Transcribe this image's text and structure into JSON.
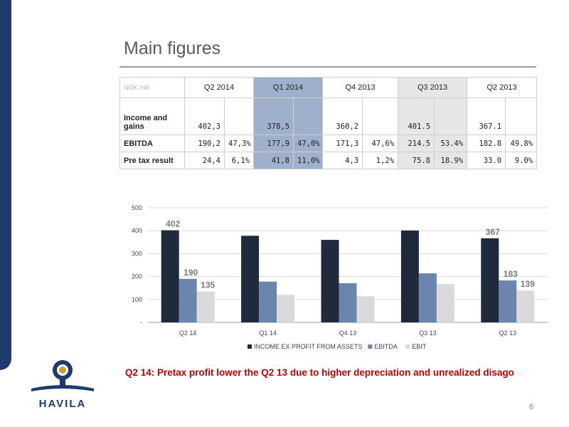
{
  "title": "Main figures",
  "table": {
    "corner": "NOK mill",
    "periods": [
      "Q2 2014",
      "Q1 2014",
      "Q4 2013",
      "Q3 2013",
      "Q2 2013"
    ],
    "rows": [
      {
        "label": "Income and gains",
        "cells": [
          "402,3",
          "",
          "378,5",
          "",
          "360,2",
          "",
          "401.5",
          "",
          "367.1",
          ""
        ]
      },
      {
        "label": "EBITDA",
        "cells": [
          "190,2",
          "47,3%",
          "177,9",
          "47,0%",
          "171,3",
          "47,6%",
          "214.5",
          "53.4%",
          "182.8",
          "49.8%"
        ]
      },
      {
        "label": "Pre tax result",
        "cells": [
          "24,4",
          "6,1%",
          "41,8",
          "11,0%",
          "4,3",
          "1,2%",
          "75.8",
          "18.9%",
          "33.0",
          "9.0%"
        ]
      }
    ]
  },
  "chart_data": {
    "type": "bar",
    "categories": [
      "Q2 14",
      "Q1 14",
      "Q4 13",
      "Q3 13",
      "Q2 13"
    ],
    "series": [
      {
        "name": "INCOME EX PROFIT FROM ASSETS",
        "color": "#1f2a3c",
        "values": [
          402,
          378,
          360,
          401,
          367
        ]
      },
      {
        "name": "EBITDA",
        "color": "#6a86ad",
        "values": [
          190,
          178,
          171,
          214,
          183
        ]
      },
      {
        "name": "EBIT",
        "color": "#dadada",
        "values": [
          135,
          120,
          114,
          167,
          139
        ]
      }
    ],
    "ylim": [
      0,
      500
    ],
    "yticks": [
      0,
      100,
      200,
      300,
      400,
      500
    ],
    "ytick_labels": [
      "-",
      "100",
      "200",
      "300",
      "400",
      "500"
    ],
    "data_labels": [
      {
        "category": "Q2 14",
        "series": "INCOME EX PROFIT FROM ASSETS",
        "text": "402"
      },
      {
        "category": "Q2 14",
        "series": "EBITDA",
        "text": "190"
      },
      {
        "category": "Q2 14",
        "series": "EBIT",
        "text": "135"
      },
      {
        "category": "Q2 13",
        "series": "INCOME EX PROFIT FROM ASSETS",
        "text": "367"
      },
      {
        "category": "Q2 13",
        "series": "EBITDA",
        "text": "183"
      },
      {
        "category": "Q2 13",
        "series": "EBIT",
        "text": "139"
      }
    ],
    "grid": true,
    "legend": "bottom"
  },
  "headline": "Q2 14: Pretax profit lower the Q2 13 due to higher depreciation and unrealized disago",
  "logo_text": "HAVILA",
  "page_number": "6"
}
